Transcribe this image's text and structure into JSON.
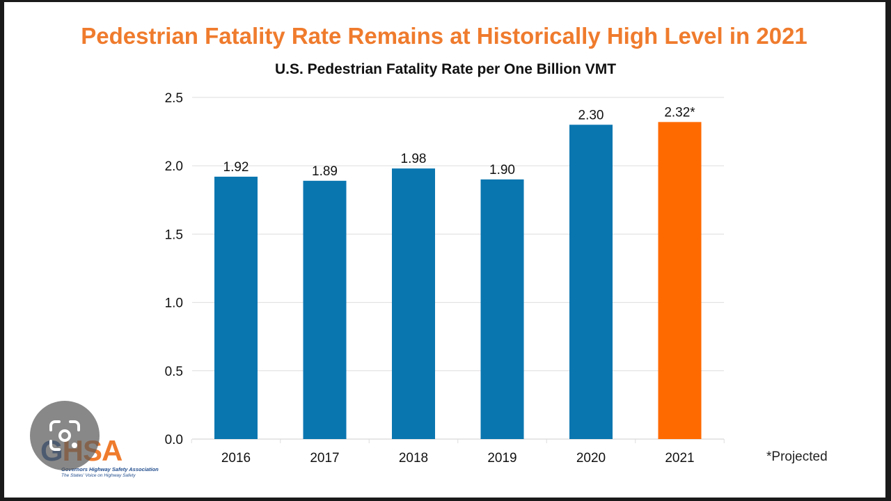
{
  "slide": {
    "title": "Pedestrian Fatality Rate Remains at Historically High Level in 2021",
    "footnote": "*Projected",
    "logo": {
      "letters_prefix": "G",
      "letters_rest": "HSA",
      "name": "Governors Highway Safety Association",
      "tagline": "The States' Voice on Highway Safety"
    },
    "overlay": {
      "icon": "lens-icon"
    }
  },
  "colors": {
    "title": "#ef7b2d",
    "bar": "#0a76b0",
    "highlight": "#ff6a00",
    "grid": "#dddddd"
  },
  "chart_data": {
    "type": "bar",
    "title": "U.S. Pedestrian Fatality Rate per One Billion VMT",
    "categories": [
      "2016",
      "2017",
      "2018",
      "2019",
      "2020",
      "2021"
    ],
    "values": [
      1.92,
      1.89,
      1.98,
      1.9,
      2.3,
      2.32
    ],
    "data_labels": [
      "1.92",
      "1.89",
      "1.98",
      "1.90",
      "2.30",
      "2.32*"
    ],
    "highlight_index": 5,
    "ylim": [
      0,
      2.5
    ],
    "yticks": [
      "0.0",
      "0.5",
      "1.0",
      "1.5",
      "2.0",
      "2.5"
    ],
    "grid": true,
    "xlabel": "",
    "ylabel": ""
  }
}
